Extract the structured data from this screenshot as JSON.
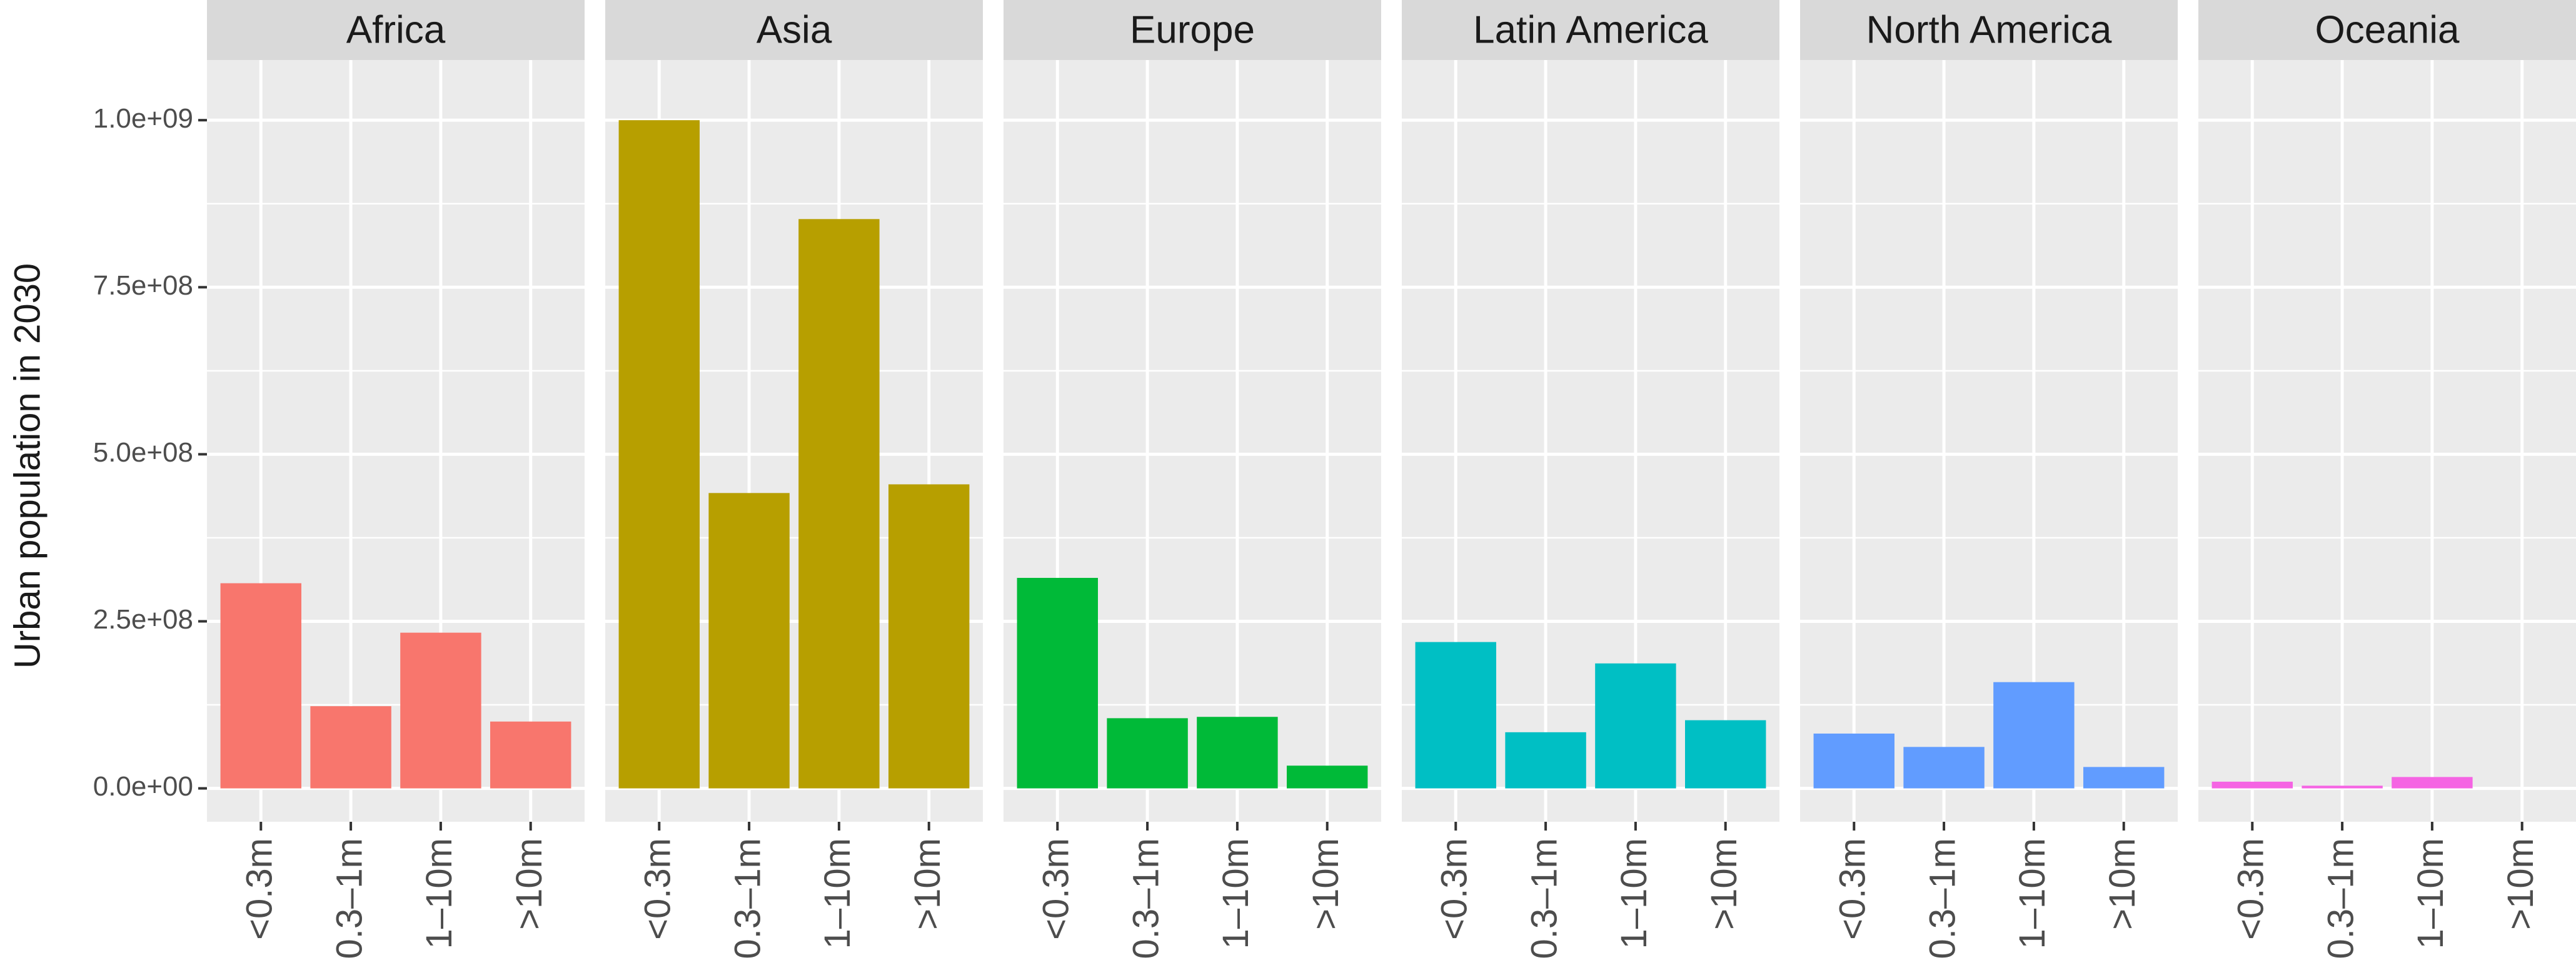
{
  "chart_data": {
    "type": "bar",
    "facet_by": "region",
    "ylabel": "Urban population in 2030",
    "xlabel": "",
    "ylim": [
      -50000000,
      1090000000
    ],
    "yticks": [
      0,
      250000000,
      500000000,
      750000000,
      1000000000
    ],
    "ytick_labels": [
      "0.0e+00",
      "2.5e+08",
      "5.0e+08",
      "7.5e+08",
      "1.0e+09"
    ],
    "categories": [
      "<0.3m",
      "0.3–1m",
      "1–10m",
      ">10m"
    ],
    "grid": true,
    "legend": "none",
    "panels": [
      {
        "name": "Africa",
        "color": "#F8766D",
        "values": [
          307000000,
          123000000,
          233000000,
          100000000
        ]
      },
      {
        "name": "Asia",
        "color": "#B79F00",
        "values": [
          1000000000,
          442000000,
          852000000,
          455000000
        ]
      },
      {
        "name": "Europe",
        "color": "#00BA38",
        "values": [
          315000000,
          105000000,
          107000000,
          34000000
        ]
      },
      {
        "name": "Latin America",
        "color": "#00BFC4",
        "values": [
          219000000,
          84000000,
          187000000,
          102000000
        ]
      },
      {
        "name": "North America",
        "color": "#619CFF",
        "values": [
          82000000,
          62000000,
          159000000,
          32000000
        ]
      },
      {
        "name": "Oceania",
        "color": "#F564E3",
        "values": [
          10000000,
          4000000,
          17000000,
          0
        ]
      }
    ]
  }
}
